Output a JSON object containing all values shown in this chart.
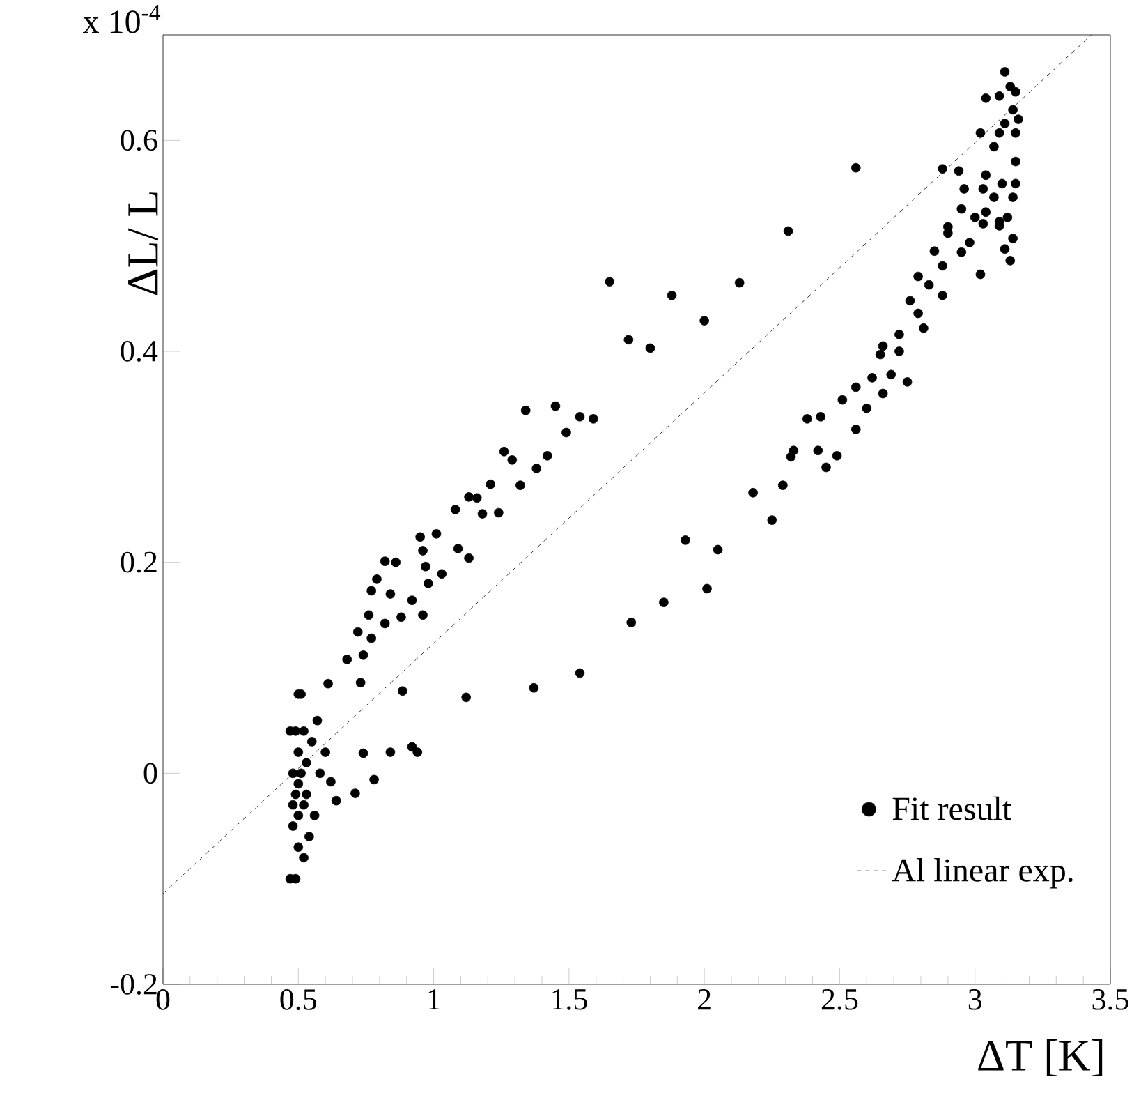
{
  "chart_data": {
    "type": "scatter",
    "xlabel": "ΔT [K]",
    "ylabel": "ΔL/ L",
    "annotations": [
      "x 10$^{-4}$"
    ],
    "xlim": [
      0,
      3.5
    ],
    "ylim": [
      -0.2,
      0.7
    ],
    "xticks": [
      0,
      0.5,
      1,
      1.5,
      2,
      2.5,
      3,
      3.5
    ],
    "yticks": [
      -0.2,
      0,
      0.2,
      0.4,
      0.6
    ],
    "legend": "bottom right",
    "grid": false,
    "series": [
      {
        "name": "Fit result",
        "type": "scatter",
        "marker": "circle",
        "color": "#000000",
        "x": [
          0.47,
          0.49,
          0.5,
          0.52,
          0.48,
          0.5,
          0.52,
          0.49,
          0.51,
          0.53,
          0.48,
          0.5,
          0.55,
          0.52,
          0.49,
          0.51,
          0.47,
          0.56,
          0.54,
          0.58,
          0.6,
          0.57,
          0.5,
          0.53,
          0.48,
          1.12,
          1.37,
          1.54,
          1.73,
          1.85,
          2.01,
          1.93,
          2.05,
          0.74,
          0.84,
          0.92,
          0.94,
          0.78,
          0.71,
          0.64,
          0.62,
          0.885,
          0.61,
          0.5,
          0.68,
          0.74,
          0.73,
          0.72,
          0.77,
          0.76,
          0.82,
          0.88,
          0.96,
          0.77,
          0.84,
          0.92,
          0.79,
          0.82,
          0.86,
          0.97,
          0.98,
          1.03,
          0.96,
          0.95,
          1.01,
          1.09,
          1.13,
          1.34,
          1.45,
          1.54,
          1.59,
          1.49,
          1.26,
          1.29,
          1.42,
          1.38,
          1.32,
          1.21,
          1.13,
          1.16,
          1.18,
          1.24,
          1.08,
          1.65,
          1.72,
          1.8,
          1.88,
          2.0,
          2.13,
          2.31,
          2.56,
          2.18,
          2.25,
          2.29,
          2.32,
          2.33,
          2.38,
          2.43,
          2.42,
          2.45,
          2.49,
          2.51,
          2.56,
          2.56,
          2.6,
          2.62,
          2.66,
          2.69,
          2.65,
          2.66,
          2.72,
          2.72,
          2.88,
          2.94,
          2.96,
          2.95,
          2.9,
          2.9,
          2.85,
          2.88,
          2.95,
          2.98,
          3.02,
          2.79,
          2.83,
          2.76,
          2.88,
          2.79,
          2.81,
          2.75,
          3.11,
          3.13,
          3.04,
          3.09,
          3.14,
          3.11,
          3.02,
          3.15,
          3.07,
          3.15,
          3.04,
          3.1,
          3.15,
          3.03,
          3.07,
          3.14,
          3.04,
          3.12,
          3.0,
          3.03,
          3.09,
          3.14,
          3.11,
          3.13,
          3.09,
          3.16,
          3.09,
          3.15
        ],
        "values": [
          -0.1,
          -0.1,
          -0.07,
          -0.08,
          -0.05,
          -0.04,
          -0.03,
          -0.02,
          0.0,
          0.01,
          0.0,
          0.02,
          0.03,
          0.04,
          0.04,
          0.075,
          0.04,
          -0.04,
          -0.06,
          0.0,
          0.02,
          0.05,
          -0.01,
          -0.02,
          -0.03,
          0.072,
          0.081,
          0.095,
          0.143,
          0.162,
          0.175,
          0.221,
          0.212,
          0.019,
          0.02,
          0.025,
          0.02,
          -0.006,
          -0.019,
          -0.026,
          -0.008,
          0.078,
          0.085,
          0.075,
          0.108,
          0.112,
          0.086,
          0.134,
          0.128,
          0.15,
          0.142,
          0.148,
          0.15,
          0.173,
          0.17,
          0.164,
          0.184,
          0.201,
          0.2,
          0.196,
          0.18,
          0.189,
          0.211,
          0.224,
          0.227,
          0.213,
          0.204,
          0.344,
          0.348,
          0.338,
          0.336,
          0.323,
          0.305,
          0.297,
          0.301,
          0.289,
          0.273,
          0.274,
          0.262,
          0.261,
          0.246,
          0.247,
          0.25,
          0.466,
          0.411,
          0.403,
          0.453,
          0.429,
          0.465,
          0.514,
          0.574,
          0.266,
          0.24,
          0.273,
          0.3,
          0.306,
          0.336,
          0.338,
          0.306,
          0.29,
          0.301,
          0.354,
          0.326,
          0.366,
          0.346,
          0.375,
          0.36,
          0.378,
          0.397,
          0.405,
          0.4,
          0.416,
          0.573,
          0.571,
          0.554,
          0.535,
          0.518,
          0.512,
          0.495,
          0.481,
          0.494,
          0.503,
          0.473,
          0.471,
          0.463,
          0.448,
          0.453,
          0.436,
          0.422,
          0.371,
          0.665,
          0.651,
          0.64,
          0.642,
          0.629,
          0.616,
          0.607,
          0.607,
          0.594,
          0.58,
          0.567,
          0.559,
          0.559,
          0.554,
          0.546,
          0.546,
          0.532,
          0.527,
          0.527,
          0.521,
          0.519,
          0.507,
          0.497,
          0.486,
          0.523,
          0.62,
          0.607,
          0.646
        ]
      },
      {
        "name": "Al linear exp.",
        "type": "line",
        "line_style": "dashed",
        "marker": "none",
        "color": "#000000",
        "x": [
          0,
          3.43
        ],
        "values": [
          -0.114,
          0.7
        ]
      }
    ]
  }
}
